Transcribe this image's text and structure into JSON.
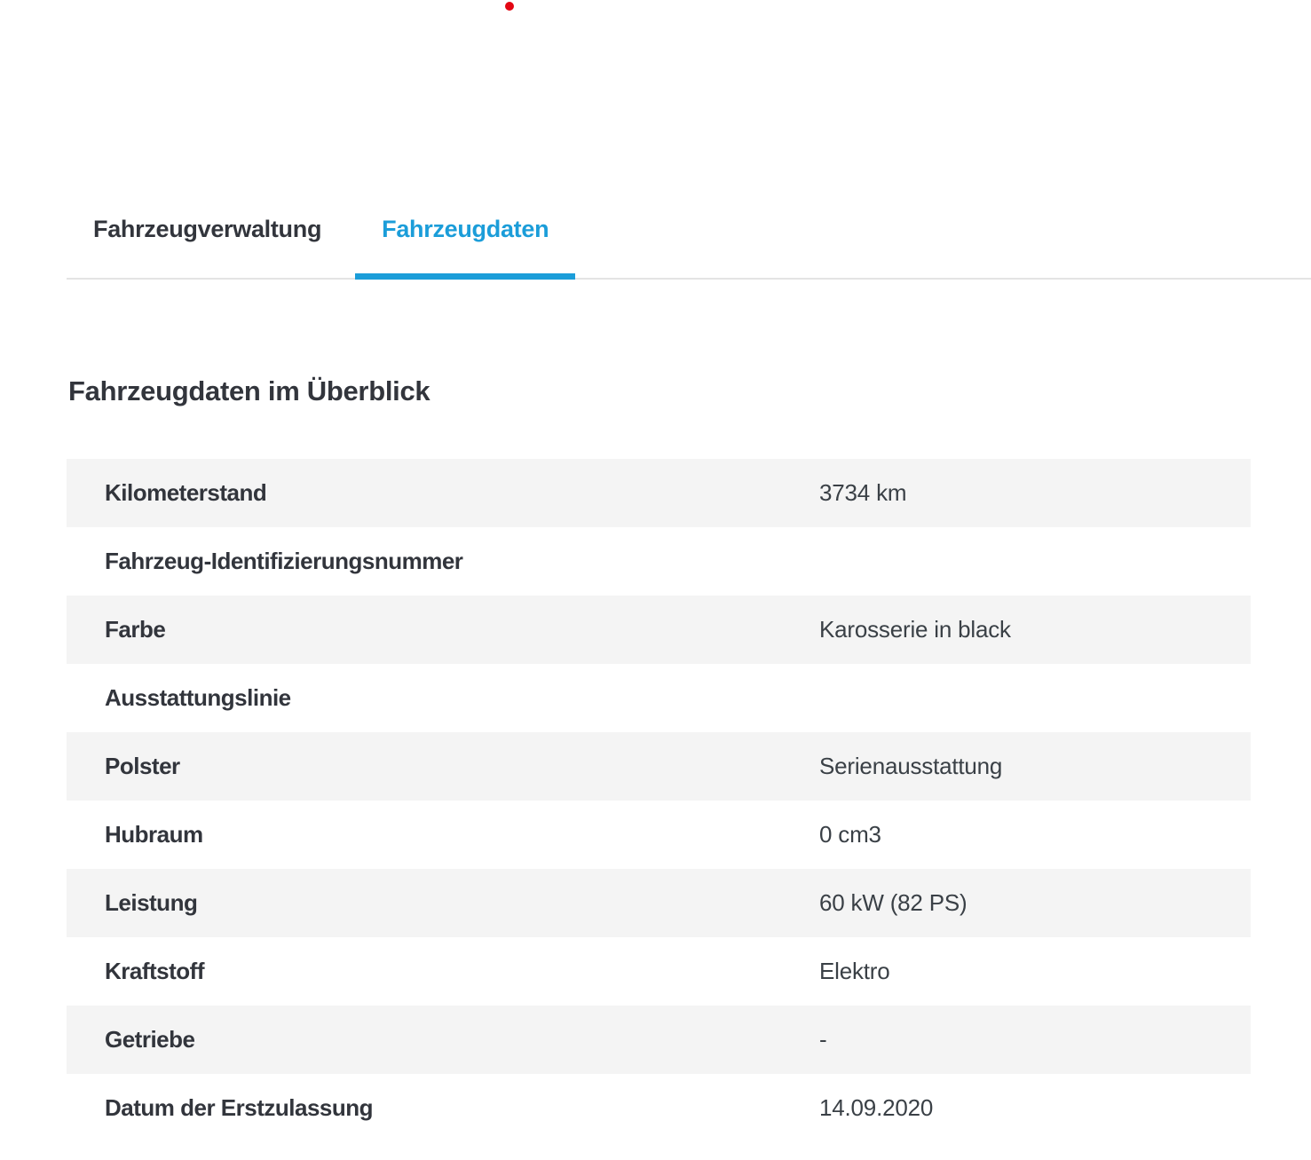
{
  "header": {
    "logo_dot_color": "#e30613"
  },
  "tabs": {
    "active_color": "#1b9dd9",
    "items": [
      {
        "label": "Fahrzeugverwaltung",
        "active": false
      },
      {
        "label": "Fahrzeugdaten",
        "active": true
      }
    ]
  },
  "main": {
    "title": "Fahrzeugdaten im Überblick",
    "table": {
      "stripe_color": "#f4f4f4",
      "rows": [
        {
          "label": "Kilometerstand",
          "value": "3734 km"
        },
        {
          "label": "Fahrzeug-Identifizierungsnummer",
          "value": ""
        },
        {
          "label": "Farbe",
          "value": "Karosserie in black"
        },
        {
          "label": "Ausstattungslinie",
          "value": ""
        },
        {
          "label": "Polster",
          "value": "Serienausstattung"
        },
        {
          "label": "Hubraum",
          "value": "0 cm3"
        },
        {
          "label": "Leistung",
          "value": "60 kW (82 PS)"
        },
        {
          "label": "Kraftstoff",
          "value": "Elektro"
        },
        {
          "label": "Getriebe",
          "value": "-"
        },
        {
          "label": "Datum der Erstzulassung",
          "value": "14.09.2020"
        }
      ]
    }
  }
}
